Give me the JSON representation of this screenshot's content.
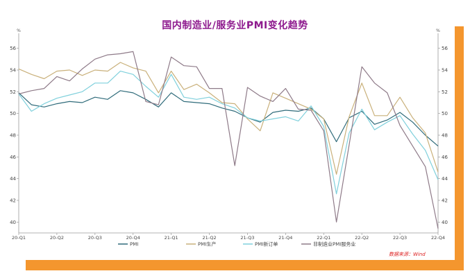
{
  "chart_data": {
    "type": "line",
    "title": "国内制造业/服务业PMI变化趋势",
    "unit_left": "%",
    "unit_right": "%",
    "source": "数据来源：Wind",
    "ylim": [
      39,
      57
    ],
    "yticks": [
      40,
      42,
      44,
      46,
      48,
      50,
      52,
      54,
      56
    ],
    "x_labels": [
      "20-Q1",
      "20-Q2",
      "20-Q3",
      "20-Q4",
      "21-Q1",
      "21-Q2",
      "21-Q3",
      "21-Q4",
      "22-Q1",
      "22-Q2",
      "22-Q3",
      "22-Q4"
    ],
    "grid": false,
    "legend_position": "bottom",
    "series": [
      {
        "name": "PMI",
        "color": "#2f6b7a",
        "values": [
          51.9,
          50.8,
          50.6,
          50.9,
          51.1,
          51.0,
          51.5,
          51.3,
          52.1,
          51.9,
          51.3,
          50.6,
          51.9,
          51.1,
          51.0,
          50.9,
          50.5,
          50.2,
          49.6,
          49.2,
          50.1,
          50.3,
          50.2,
          50.5,
          49.5,
          47.4,
          49.6,
          50.2,
          49.0,
          49.4,
          50.1,
          49.2,
          48.0,
          47.0
        ]
      },
      {
        "name": "PMI生产",
        "color": "#c9b07a",
        "values": [
          54.1,
          53.6,
          53.2,
          53.9,
          54.0,
          53.5,
          54.0,
          53.9,
          54.7,
          54.2,
          53.9,
          51.9,
          53.9,
          52.2,
          52.7,
          51.9,
          51.0,
          50.9,
          49.5,
          48.4,
          51.9,
          51.4,
          50.9,
          50.4,
          49.5,
          44.4,
          49.7,
          52.8,
          49.8,
          49.8,
          51.5,
          49.6,
          48.2,
          44.6
        ]
      },
      {
        "name": "PMI新订单",
        "color": "#7fd0dc",
        "values": [
          51.8,
          50.2,
          50.9,
          51.4,
          51.7,
          52.0,
          52.8,
          52.8,
          53.9,
          53.6,
          52.5,
          51.5,
          53.6,
          51.5,
          51.3,
          51.5,
          50.9,
          50.5,
          49.6,
          49.3,
          49.5,
          49.7,
          49.3,
          50.7,
          48.8,
          42.6,
          48.2,
          50.4,
          48.5,
          49.2,
          49.8,
          48.1,
          46.6,
          43.9
        ]
      },
      {
        "name": "非制造业PMI服务业",
        "color": "#8e7a88",
        "values": [
          51.8,
          52.1,
          52.3,
          53.4,
          53.0,
          54.1,
          55.0,
          55.4,
          55.5,
          55.7,
          51.1,
          50.8,
          55.2,
          54.4,
          54.3,
          52.3,
          52.3,
          45.2,
          52.4,
          51.6,
          51.1,
          52.3,
          50.4,
          50.3,
          48.4,
          40.0,
          47.1,
          54.3,
          52.8,
          51.9,
          48.9,
          47.0,
          45.1,
          39.4
        ]
      }
    ]
  }
}
